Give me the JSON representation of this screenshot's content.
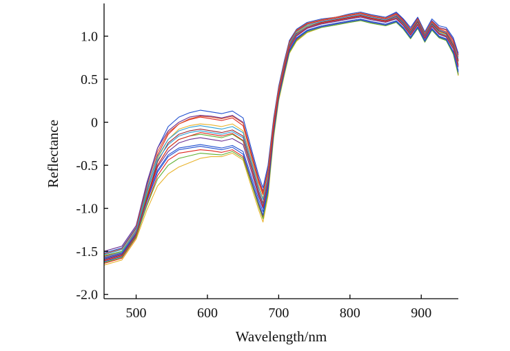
{
  "chart_data": {
    "type": "line",
    "title": "",
    "xlabel": "Wavelength/nm",
    "ylabel": "Reflectance",
    "xlim": [
      455,
      952
    ],
    "ylim": [
      -2.05,
      1.38
    ],
    "xticks": [
      500,
      600,
      700,
      800,
      900
    ],
    "xtick_labels": [
      "500",
      "600",
      "700",
      "800",
      "900"
    ],
    "yticks": [
      -2.0,
      -1.5,
      -1.0,
      -0.5,
      0,
      0.5,
      1.0
    ],
    "ytick_labels": [
      "-2.0",
      "-1.5",
      "-1.0",
      "-0.5",
      "0",
      "0.5",
      "1.0"
    ],
    "grid": false,
    "legend": "none",
    "x": [
      455,
      480,
      500,
      515,
      530,
      545,
      560,
      575,
      590,
      605,
      620,
      635,
      650,
      662,
      672,
      678,
      685,
      693,
      700,
      708,
      715,
      725,
      740,
      760,
      780,
      800,
      815,
      830,
      850,
      865,
      875,
      885,
      895,
      905,
      915,
      925,
      935,
      945,
      952
    ],
    "series": [
      {
        "color": "#1f4fd0",
        "values": [
          -1.52,
          -1.46,
          -1.22,
          -0.72,
          -0.3,
          -0.05,
          0.06,
          0.11,
          0.14,
          0.12,
          0.1,
          0.13,
          0.05,
          -0.32,
          -0.62,
          -0.76,
          -0.5,
          0.05,
          0.42,
          0.72,
          0.95,
          1.08,
          1.16,
          1.2,
          1.22,
          1.26,
          1.28,
          1.25,
          1.22,
          1.28,
          1.2,
          1.1,
          1.22,
          1.05,
          1.2,
          1.12,
          1.1,
          0.98,
          0.8
        ]
      },
      {
        "color": "#e0251d",
        "values": [
          -1.56,
          -1.5,
          -1.26,
          -0.8,
          -0.38,
          -0.14,
          -0.02,
          0.03,
          0.06,
          0.04,
          0.02,
          0.05,
          -0.04,
          -0.4,
          -0.7,
          -0.84,
          -0.58,
          0.0,
          0.38,
          0.68,
          0.92,
          1.06,
          1.14,
          1.18,
          1.21,
          1.24,
          1.26,
          1.23,
          1.2,
          1.25,
          1.17,
          1.06,
          1.19,
          1.02,
          1.16,
          1.08,
          1.05,
          0.92,
          0.72
        ]
      },
      {
        "color": "#e8b22a",
        "values": [
          -1.58,
          -1.52,
          -1.28,
          -0.84,
          -0.42,
          -0.2,
          -0.08,
          -0.04,
          -0.02,
          -0.03,
          -0.05,
          -0.02,
          -0.1,
          -0.44,
          -0.74,
          -0.88,
          -0.62,
          -0.02,
          0.36,
          0.66,
          0.9,
          1.04,
          1.12,
          1.16,
          1.19,
          1.22,
          1.24,
          1.21,
          1.18,
          1.22,
          1.14,
          1.04,
          1.16,
          1.0,
          1.14,
          1.05,
          1.02,
          0.88,
          0.7
        ]
      },
      {
        "color": "#6a2d91",
        "values": [
          -1.5,
          -1.44,
          -1.2,
          -0.7,
          -0.3,
          -0.1,
          0.0,
          0.06,
          0.08,
          0.07,
          0.05,
          0.08,
          0.0,
          -0.36,
          -0.66,
          -0.8,
          -0.54,
          0.02,
          0.4,
          0.7,
          0.94,
          1.07,
          1.15,
          1.19,
          1.22,
          1.25,
          1.27,
          1.24,
          1.21,
          1.27,
          1.19,
          1.08,
          1.21,
          1.03,
          1.18,
          1.1,
          1.08,
          0.96,
          0.78
        ]
      },
      {
        "color": "#5fb032",
        "values": [
          -1.55,
          -1.5,
          -1.27,
          -0.86,
          -0.5,
          -0.3,
          -0.2,
          -0.16,
          -0.14,
          -0.16,
          -0.18,
          -0.14,
          -0.22,
          -0.54,
          -0.82,
          -0.96,
          -0.68,
          -0.06,
          0.34,
          0.64,
          0.88,
          1.02,
          1.1,
          1.15,
          1.18,
          1.21,
          1.23,
          1.2,
          1.17,
          1.21,
          1.13,
          1.02,
          1.14,
          0.98,
          1.12,
          1.03,
          1.0,
          0.86,
          0.66
        ]
      },
      {
        "color": "#2a9fd6",
        "values": [
          -1.54,
          -1.48,
          -1.24,
          -0.78,
          -0.4,
          -0.2,
          -0.1,
          -0.06,
          -0.04,
          -0.06,
          -0.08,
          -0.05,
          -0.12,
          -0.46,
          -0.76,
          -0.9,
          -0.63,
          -0.03,
          0.37,
          0.67,
          0.91,
          1.05,
          1.13,
          1.17,
          1.2,
          1.23,
          1.25,
          1.22,
          1.19,
          1.24,
          1.16,
          1.05,
          1.18,
          1.01,
          1.15,
          1.07,
          1.04,
          0.9,
          0.74
        ]
      },
      {
        "color": "#9b1f2a",
        "values": [
          -1.6,
          -1.54,
          -1.3,
          -0.88,
          -0.46,
          -0.24,
          -0.14,
          -0.1,
          -0.08,
          -0.1,
          -0.12,
          -0.09,
          -0.16,
          -0.5,
          -0.8,
          -0.94,
          -0.66,
          -0.04,
          0.35,
          0.65,
          0.89,
          1.03,
          1.11,
          1.16,
          1.19,
          1.22,
          1.24,
          1.21,
          1.18,
          1.23,
          1.15,
          1.04,
          1.17,
          1.0,
          1.14,
          1.06,
          1.03,
          0.89,
          0.71
        ]
      },
      {
        "color": "#1f4fd0",
        "values": [
          -1.62,
          -1.56,
          -1.32,
          -0.92,
          -0.56,
          -0.38,
          -0.3,
          -0.28,
          -0.26,
          -0.28,
          -0.3,
          -0.27,
          -0.34,
          -0.64,
          -0.9,
          -1.04,
          -0.74,
          -0.1,
          0.3,
          0.6,
          0.84,
          0.98,
          1.07,
          1.12,
          1.15,
          1.18,
          1.2,
          1.17,
          1.14,
          1.18,
          1.1,
          0.99,
          1.11,
          0.95,
          1.09,
          1.0,
          0.97,
          0.82,
          0.6
        ]
      },
      {
        "color": "#e0251d",
        "values": [
          -1.64,
          -1.58,
          -1.34,
          -0.96,
          -0.62,
          -0.44,
          -0.36,
          -0.34,
          -0.32,
          -0.33,
          -0.35,
          -0.32,
          -0.4,
          -0.7,
          -0.96,
          -1.1,
          -0.8,
          -0.14,
          0.28,
          0.58,
          0.82,
          0.96,
          1.06,
          1.11,
          1.14,
          1.17,
          1.19,
          1.16,
          1.13,
          1.17,
          1.09,
          0.98,
          1.1,
          0.94,
          1.08,
          0.99,
          0.96,
          0.8,
          0.56
        ]
      },
      {
        "color": "#e8b22a",
        "values": [
          -1.66,
          -1.6,
          -1.36,
          -1.02,
          -0.74,
          -0.6,
          -0.52,
          -0.47,
          -0.42,
          -0.4,
          -0.4,
          -0.36,
          -0.44,
          -0.76,
          -1.02,
          -1.16,
          -0.86,
          -0.18,
          0.25,
          0.55,
          0.8,
          0.94,
          1.04,
          1.1,
          1.13,
          1.16,
          1.18,
          1.15,
          1.12,
          1.16,
          1.08,
          0.97,
          1.09,
          0.93,
          1.07,
          0.98,
          0.95,
          0.79,
          0.54
        ]
      },
      {
        "color": "#6a2d91",
        "values": [
          -1.58,
          -1.52,
          -1.29,
          -0.9,
          -0.52,
          -0.34,
          -0.24,
          -0.2,
          -0.18,
          -0.2,
          -0.22,
          -0.19,
          -0.26,
          -0.58,
          -0.86,
          -1.0,
          -0.7,
          -0.07,
          0.32,
          0.62,
          0.86,
          1.0,
          1.09,
          1.14,
          1.17,
          1.2,
          1.22,
          1.19,
          1.16,
          1.2,
          1.12,
          1.01,
          1.13,
          0.97,
          1.11,
          1.02,
          0.99,
          0.85,
          0.64
        ]
      },
      {
        "color": "#5fb032",
        "values": [
          -1.63,
          -1.57,
          -1.33,
          -0.97,
          -0.66,
          -0.5,
          -0.42,
          -0.39,
          -0.36,
          -0.37,
          -0.38,
          -0.34,
          -0.42,
          -0.72,
          -0.98,
          -1.12,
          -0.82,
          -0.15,
          0.27,
          0.57,
          0.81,
          0.95,
          1.05,
          1.1,
          1.13,
          1.16,
          1.18,
          1.15,
          1.12,
          1.16,
          1.08,
          0.97,
          1.09,
          0.93,
          1.07,
          0.98,
          0.95,
          0.79,
          0.55
        ]
      },
      {
        "color": "#2a9fd6",
        "values": [
          -1.57,
          -1.51,
          -1.27,
          -0.82,
          -0.44,
          -0.26,
          -0.16,
          -0.12,
          -0.1,
          -0.12,
          -0.14,
          -0.11,
          -0.18,
          -0.52,
          -0.82,
          -0.96,
          -0.67,
          -0.05,
          0.34,
          0.64,
          0.88,
          1.02,
          1.11,
          1.15,
          1.18,
          1.21,
          1.23,
          1.2,
          1.17,
          1.22,
          1.14,
          1.03,
          1.15,
          0.99,
          1.13,
          1.04,
          1.01,
          0.87,
          0.68
        ]
      },
      {
        "color": "#d8542a",
        "values": [
          -1.53,
          -1.47,
          -1.23,
          -0.75,
          -0.34,
          -0.12,
          -0.02,
          0.04,
          0.07,
          0.06,
          0.04,
          0.07,
          -0.01,
          -0.38,
          -0.68,
          -0.82,
          -0.56,
          0.01,
          0.39,
          0.69,
          0.93,
          1.07,
          1.15,
          1.19,
          1.22,
          1.25,
          1.27,
          1.24,
          1.21,
          1.26,
          1.18,
          1.07,
          1.2,
          1.03,
          1.17,
          1.09,
          1.07,
          0.94,
          0.76
        ]
      },
      {
        "color": "#1f4fd0",
        "values": [
          -1.59,
          -1.53,
          -1.3,
          -0.92,
          -0.58,
          -0.4,
          -0.32,
          -0.3,
          -0.28,
          -0.3,
          -0.32,
          -0.29,
          -0.37,
          -0.68,
          -0.94,
          -1.08,
          -0.78,
          -0.12,
          0.29,
          0.59,
          0.83,
          0.97,
          1.06,
          1.11,
          1.14,
          1.17,
          1.19,
          1.16,
          1.13,
          1.17,
          1.09,
          0.98,
          1.1,
          0.94,
          1.08,
          0.99,
          0.96,
          0.81,
          0.58
        ]
      },
      {
        "color": "#e0251d",
        "values": [
          -1.61,
          -1.55,
          -1.31,
          -0.89,
          -0.5,
          -0.3,
          -0.2,
          -0.16,
          -0.12,
          -0.14,
          -0.16,
          -0.13,
          -0.21,
          -0.54,
          -0.84,
          -0.98,
          -0.69,
          -0.06,
          0.33,
          0.63,
          0.87,
          1.01,
          1.1,
          1.15,
          1.18,
          1.21,
          1.23,
          1.2,
          1.17,
          1.21,
          1.13,
          1.02,
          1.14,
          0.98,
          1.12,
          1.03,
          1.0,
          0.86,
          0.66
        ]
      }
    ]
  }
}
